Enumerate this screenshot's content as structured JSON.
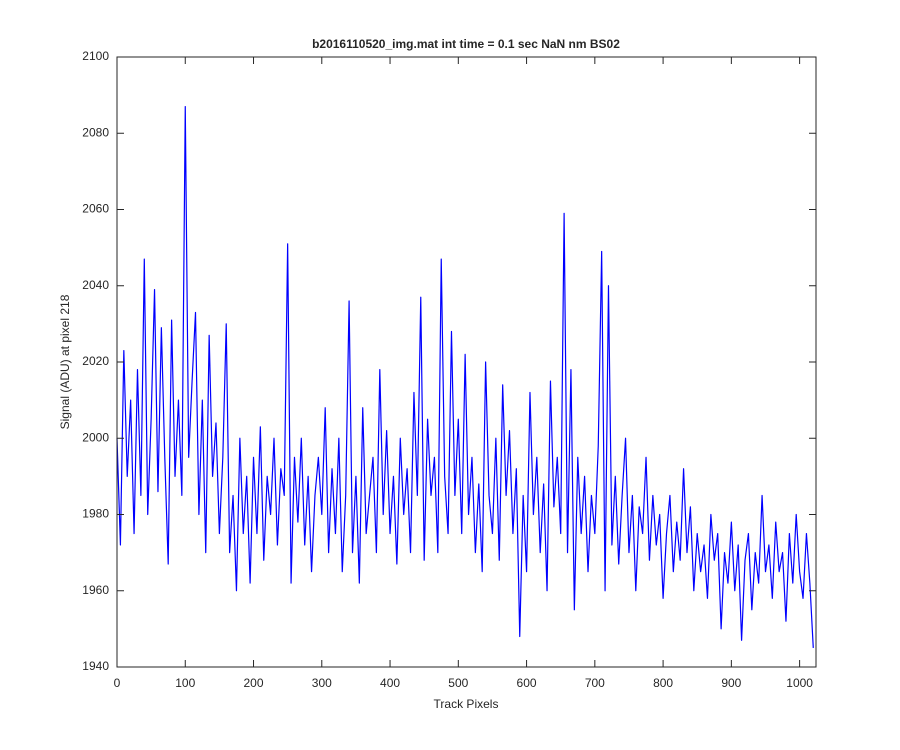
{
  "chart_data": {
    "type": "line",
    "title": "b2016110520_img.mat int time = 0.1 sec  NaN nm BS02",
    "x_label": "Track Pixels",
    "y_label": "Signal (ADU) at pixel 218",
    "x": [
      0,
      5,
      10,
      15,
      20,
      25,
      30,
      35,
      40,
      45,
      50,
      55,
      60,
      65,
      70,
      75,
      80,
      85,
      90,
      95,
      100,
      105,
      110,
      115,
      120,
      125,
      130,
      135,
      140,
      145,
      150,
      155,
      160,
      165,
      170,
      175,
      180,
      185,
      190,
      195,
      200,
      205,
      210,
      215,
      220,
      225,
      230,
      235,
      240,
      245,
      250,
      255,
      260,
      265,
      270,
      275,
      280,
      285,
      290,
      295,
      300,
      305,
      310,
      315,
      320,
      325,
      330,
      335,
      340,
      345,
      350,
      355,
      360,
      365,
      370,
      375,
      380,
      385,
      390,
      395,
      400,
      405,
      410,
      415,
      420,
      425,
      430,
      435,
      440,
      445,
      450,
      455,
      460,
      465,
      470,
      475,
      480,
      485,
      490,
      495,
      500,
      505,
      510,
      515,
      520,
      525,
      530,
      535,
      540,
      545,
      550,
      555,
      560,
      565,
      570,
      575,
      580,
      585,
      590,
      595,
      600,
      605,
      610,
      615,
      620,
      625,
      630,
      635,
      640,
      645,
      650,
      655,
      660,
      665,
      670,
      675,
      680,
      685,
      690,
      695,
      700,
      705,
      710,
      715,
      720,
      725,
      730,
      735,
      740,
      745,
      750,
      755,
      760,
      765,
      770,
      775,
      780,
      785,
      790,
      795,
      800,
      805,
      810,
      815,
      820,
      825,
      830,
      835,
      840,
      845,
      850,
      855,
      860,
      865,
      870,
      875,
      880,
      885,
      890,
      895,
      900,
      905,
      910,
      915,
      920,
      925,
      930,
      935,
      940,
      945,
      950,
      955,
      960,
      965,
      970,
      975,
      980,
      985,
      990,
      995,
      1000,
      1005,
      1010,
      1015,
      1020
    ],
    "values": [
      2000,
      1972,
      2023,
      1990,
      2010,
      1975,
      2018,
      1985,
      2047,
      1980,
      2005,
      2039,
      1986,
      2029,
      1995,
      1967,
      2031,
      1990,
      2010,
      1985,
      2087,
      1995,
      2015,
      2033,
      1980,
      2010,
      1970,
      2027,
      1990,
      2004,
      1975,
      1995,
      2030,
      1970,
      1985,
      1960,
      2000,
      1975,
      1990,
      1962,
      1995,
      1975,
      2003,
      1968,
      1990,
      1980,
      2000,
      1972,
      1992,
      1985,
      2051,
      1962,
      1995,
      1978,
      2000,
      1972,
      1990,
      1965,
      1985,
      1995,
      1980,
      2008,
      1970,
      1992,
      1975,
      2000,
      1965,
      1985,
      2036,
      1970,
      1990,
      1962,
      2008,
      1975,
      1985,
      1995,
      1970,
      2018,
      1980,
      2002,
      1975,
      1990,
      1967,
      2000,
      1980,
      1992,
      1970,
      2012,
      1985,
      2037,
      1968,
      2005,
      1985,
      1995,
      1970,
      2047,
      1990,
      1975,
      2028,
      1985,
      2005,
      1975,
      2022,
      1980,
      1995,
      1970,
      1988,
      1965,
      2020,
      1985,
      1975,
      2000,
      1968,
      2014,
      1985,
      2002,
      1975,
      1992,
      1948,
      1985,
      1965,
      2012,
      1980,
      1995,
      1970,
      1988,
      1960,
      2015,
      1982,
      1995,
      1975,
      2059,
      1970,
      2018,
      1955,
      1995,
      1975,
      1990,
      1965,
      1985,
      1975,
      1998,
      2049,
      1960,
      2040,
      1972,
      1990,
      1967,
      1985,
      2000,
      1970,
      1985,
      1960,
      1982,
      1975,
      1995,
      1968,
      1985,
      1972,
      1980,
      1958,
      1975,
      1985,
      1965,
      1978,
      1968,
      1992,
      1970,
      1982,
      1960,
      1975,
      1965,
      1972,
      1958,
      1980,
      1968,
      1975,
      1950,
      1970,
      1962,
      1978,
      1960,
      1972,
      1947,
      1968,
      1975,
      1955,
      1970,
      1962,
      1985,
      1965,
      1972,
      1958,
      1978,
      1965,
      1970,
      1952,
      1975,
      1962,
      1980,
      1965,
      1958,
      1975,
      1962,
      1945
    ],
    "color": "#0000ff",
    "xlim": [
      0,
      1024
    ],
    "xticks": [
      0,
      100,
      200,
      300,
      400,
      500,
      600,
      700,
      800,
      900,
      1000
    ],
    "ylim": [
      1940,
      2100
    ],
    "yticks": [
      1940,
      1960,
      1980,
      2000,
      2020,
      2040,
      2060,
      2080,
      2100
    ],
    "grid": false
  }
}
